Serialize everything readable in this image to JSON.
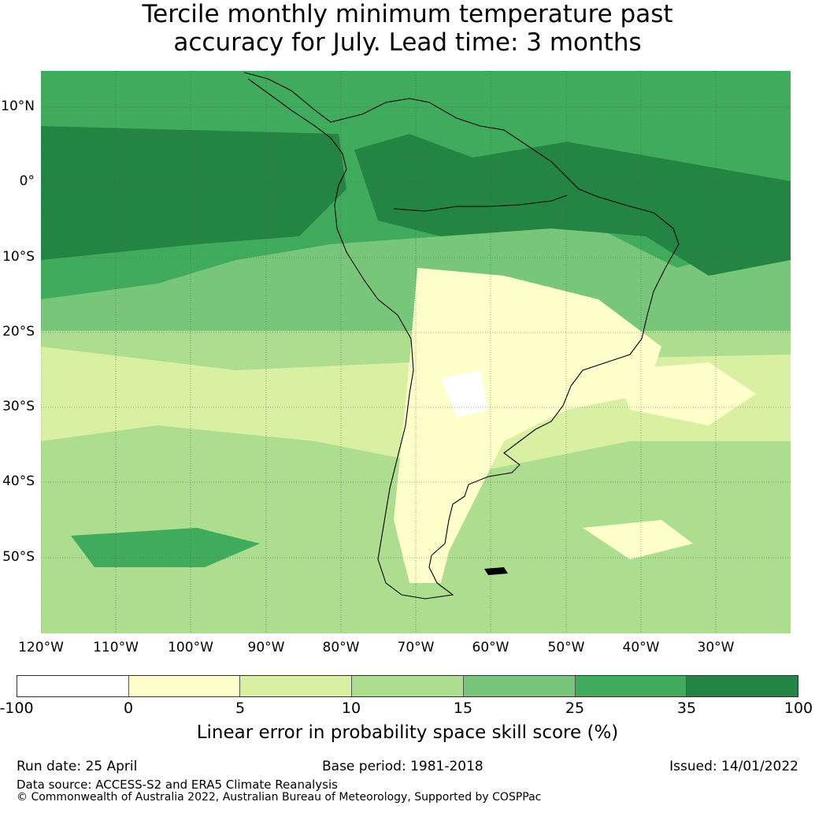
{
  "title_line1": "Tercile monthly minimum temperature past",
  "title_line2": "accuracy for July. Lead time: 3 months",
  "lat_labels": [
    "10°N",
    "0°",
    "10°S",
    "20°S",
    "30°S",
    "40°S",
    "50°S"
  ],
  "lon_labels": [
    "120°W",
    "110°W",
    "100°W",
    "90°W",
    "80°W",
    "70°W",
    "60°W",
    "50°W",
    "40°W",
    "30°W"
  ],
  "colorbar": {
    "ticks": [
      "-100",
      "0",
      "5",
      "10",
      "15",
      "25",
      "35",
      "100"
    ],
    "colors": [
      "#ffffff",
      "#ffffcc",
      "#d9f0a3",
      "#addd8e",
      "#78c679",
      "#41ab5d",
      "#238443"
    ],
    "label": "Linear error in probability space skill score (%)"
  },
  "footer": {
    "run_date": "Run date: 25 April",
    "base_period": "Base period: 1981-2018",
    "issued": "Issued: 14/01/2022",
    "source": "Data source: ACCESS-S2 and ERA5 Climate Reanalysis",
    "copyright": "© Commonwealth of Australia 2022, Australian Bureau of Meteorology, Supported by COSPPac"
  }
}
